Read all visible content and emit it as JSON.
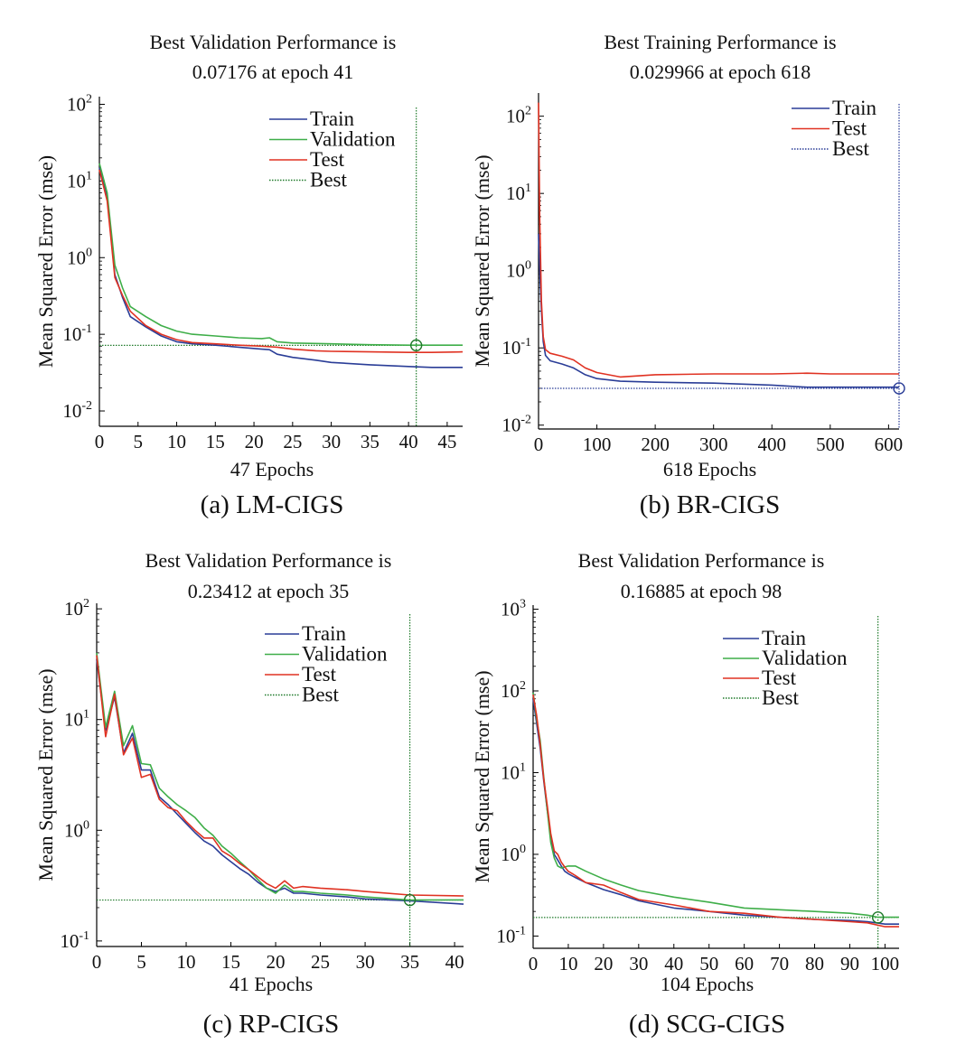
{
  "colors": {
    "train": "#2a3d97",
    "validation": "#3fae49",
    "test": "#e03222",
    "best_green": "#1f7a2a",
    "best_blue": "#2a3d97",
    "axis": "#000000"
  },
  "chart_data": [
    {
      "type": "line",
      "scale": "log",
      "caption": "(a) LM-CIGS",
      "title_line1": "Best Validation Performance is",
      "title_line2": "0.07176 at epoch 41",
      "xlabel": "47 Epochs",
      "ylabel": "Mean Squared Error (mse)",
      "xlim": [
        0,
        47
      ],
      "ylim_exp": [
        -2.2,
        2.1
      ],
      "xticks": [
        0,
        5,
        10,
        15,
        20,
        25,
        30,
        35,
        40,
        45
      ],
      "ytick_exps": [
        -2,
        -1,
        0,
        1,
        2
      ],
      "legend": [
        "Train",
        "Validation",
        "Test",
        "Best"
      ],
      "best": {
        "epoch": 41,
        "value": 0.07176,
        "color_key": "best_green"
      },
      "series": [
        {
          "name": "Train",
          "color_key": "train",
          "x": [
            0,
            1,
            2,
            3,
            4,
            6,
            8,
            10,
            12,
            15,
            18,
            21,
            22,
            23,
            25,
            28,
            30,
            35,
            40,
            43,
            47
          ],
          "y": [
            15,
            6,
            0.6,
            0.3,
            0.17,
            0.125,
            0.095,
            0.08,
            0.075,
            0.072,
            0.068,
            0.064,
            0.063,
            0.055,
            0.05,
            0.046,
            0.043,
            0.04,
            0.038,
            0.037,
            0.037
          ]
        },
        {
          "name": "Validation",
          "color_key": "validation",
          "x": [
            0,
            1,
            2,
            3,
            4,
            6,
            8,
            10,
            12,
            15,
            18,
            21,
            22,
            23,
            25,
            30,
            35,
            40,
            43,
            47
          ],
          "y": [
            17,
            7,
            0.8,
            0.4,
            0.23,
            0.17,
            0.13,
            0.11,
            0.1,
            0.095,
            0.09,
            0.088,
            0.09,
            0.08,
            0.077,
            0.075,
            0.073,
            0.072,
            0.072,
            0.072
          ]
        },
        {
          "name": "Test",
          "color_key": "test",
          "x": [
            0,
            1,
            2,
            3,
            4,
            6,
            8,
            10,
            12,
            15,
            18,
            21,
            23,
            25,
            28,
            30,
            35,
            40,
            43,
            47
          ],
          "y": [
            14,
            5.5,
            0.55,
            0.32,
            0.2,
            0.13,
            0.1,
            0.085,
            0.078,
            0.075,
            0.072,
            0.07,
            0.068,
            0.064,
            0.061,
            0.06,
            0.059,
            0.058,
            0.058,
            0.059
          ]
        }
      ]
    },
    {
      "type": "line",
      "scale": "log",
      "caption": "(b) BR-CIGS",
      "title_line1": "Best Training Performance is",
      "title_line2": "0.029966 at epoch 618",
      "xlabel": "618 Epochs",
      "ylabel": "Mean Squared Error (mse)",
      "xlim": [
        0,
        618
      ],
      "ylim_exp": [
        -2.05,
        2.3
      ],
      "xticks": [
        0,
        100,
        200,
        300,
        400,
        500,
        600
      ],
      "ytick_exps": [
        -2,
        -1,
        0,
        1,
        2
      ],
      "legend": [
        "Train",
        "Test",
        "Best"
      ],
      "best": {
        "epoch": 618,
        "value": 0.029966,
        "color_key": "best_blue"
      },
      "series": [
        {
          "name": "Train",
          "color_key": "train",
          "x": [
            0,
            2,
            5,
            8,
            12,
            20,
            40,
            60,
            80,
            100,
            140,
            200,
            300,
            400,
            460,
            500,
            618
          ],
          "y": [
            3,
            1,
            0.3,
            0.12,
            0.08,
            0.068,
            0.062,
            0.055,
            0.045,
            0.04,
            0.037,
            0.036,
            0.035,
            0.033,
            0.031,
            0.031,
            0.031
          ]
        },
        {
          "name": "Test",
          "color_key": "test",
          "x": [
            0,
            2,
            5,
            8,
            12,
            20,
            40,
            60,
            80,
            100,
            140,
            200,
            300,
            400,
            460,
            500,
            618
          ],
          "y": [
            150,
            5,
            0.4,
            0.14,
            0.095,
            0.085,
            0.078,
            0.07,
            0.055,
            0.048,
            0.042,
            0.045,
            0.046,
            0.046,
            0.047,
            0.046,
            0.046
          ]
        }
      ]
    },
    {
      "type": "line",
      "scale": "log",
      "caption": "(c) RP-CIGS",
      "title_line1": "Best Validation Performance is",
      "title_line2": "0.23412 at epoch 35",
      "xlabel": "41 Epochs",
      "ylabel": "Mean Squared Error (mse)",
      "xlim": [
        0,
        41
      ],
      "ylim_exp": [
        -1.05,
        2.05
      ],
      "xticks": [
        0,
        5,
        10,
        15,
        20,
        25,
        30,
        35,
        40
      ],
      "ytick_exps": [
        -1,
        0,
        1,
        2
      ],
      "legend": [
        "Train",
        "Validation",
        "Test",
        "Best"
      ],
      "best": {
        "epoch": 35,
        "value": 0.23412,
        "color_key": "best_green"
      },
      "series": [
        {
          "name": "Train",
          "color_key": "train",
          "x": [
            0,
            1,
            2,
            3,
            4,
            5,
            6,
            7,
            8,
            9,
            10,
            11,
            12,
            13,
            14,
            15,
            16,
            17,
            18,
            19,
            20,
            21,
            22,
            23,
            25,
            28,
            30,
            35,
            41
          ],
          "y": [
            35,
            8,
            16,
            5,
            7.5,
            3.5,
            3.5,
            2,
            1.7,
            1.4,
            1.15,
            0.95,
            0.8,
            0.72,
            0.6,
            0.52,
            0.45,
            0.4,
            0.34,
            0.3,
            0.28,
            0.3,
            0.27,
            0.27,
            0.26,
            0.25,
            0.24,
            0.23,
            0.215
          ]
        },
        {
          "name": "Validation",
          "color_key": "validation",
          "x": [
            0,
            1,
            2,
            3,
            4,
            5,
            6,
            7,
            8,
            9,
            10,
            11,
            12,
            13,
            14,
            15,
            16,
            17,
            18,
            19,
            20,
            21,
            22,
            23,
            25,
            28,
            30,
            35,
            41
          ],
          "y": [
            40,
            8.5,
            18,
            5.8,
            8.8,
            4,
            3.9,
            2.4,
            2,
            1.7,
            1.5,
            1.3,
            1.05,
            0.9,
            0.72,
            0.62,
            0.52,
            0.44,
            0.36,
            0.3,
            0.27,
            0.32,
            0.28,
            0.28,
            0.27,
            0.26,
            0.25,
            0.234,
            0.235
          ]
        },
        {
          "name": "Test",
          "color_key": "test",
          "x": [
            0,
            1,
            2,
            3,
            4,
            5,
            6,
            7,
            8,
            9,
            10,
            11,
            12,
            13,
            14,
            15,
            16,
            17,
            18,
            19,
            20,
            21,
            22,
            23,
            25,
            28,
            30,
            35,
            41
          ],
          "y": [
            38,
            7,
            17,
            4.8,
            6.8,
            3,
            3.2,
            1.9,
            1.6,
            1.5,
            1.2,
            1,
            0.85,
            0.85,
            0.65,
            0.58,
            0.5,
            0.44,
            0.38,
            0.33,
            0.3,
            0.35,
            0.3,
            0.31,
            0.3,
            0.29,
            0.28,
            0.26,
            0.255
          ]
        }
      ]
    },
    {
      "type": "line",
      "scale": "log",
      "caption": "(d) SCG-CIGS",
      "title_line1": "Best Validation Performance is",
      "title_line2": "0.16885 at epoch 98",
      "xlabel": "104 Epochs",
      "ylabel": "Mean Squared Error (mse)",
      "xlim": [
        0,
        104
      ],
      "ylim_exp": [
        -1.15,
        3.05
      ],
      "xticks": [
        0,
        10,
        20,
        30,
        40,
        50,
        60,
        70,
        80,
        90,
        100
      ],
      "ytick_exps": [
        -1,
        0,
        1,
        2,
        3
      ],
      "legend": [
        "Train",
        "Validation",
        "Test",
        "Best"
      ],
      "best": {
        "epoch": 98,
        "value": 0.16885,
        "color_key": "best_green"
      },
      "series": [
        {
          "name": "Train",
          "color_key": "train",
          "x": [
            0,
            1,
            2,
            3,
            4,
            5,
            6,
            7,
            8,
            9,
            10,
            12,
            15,
            20,
            25,
            30,
            40,
            50,
            60,
            70,
            80,
            90,
            95,
            100,
            104
          ],
          "y": [
            80,
            40,
            20,
            8,
            3.5,
            1.7,
            1,
            0.85,
            0.72,
            0.62,
            0.58,
            0.52,
            0.45,
            0.37,
            0.32,
            0.27,
            0.22,
            0.2,
            0.18,
            0.17,
            0.16,
            0.155,
            0.15,
            0.14,
            0.14
          ]
        },
        {
          "name": "Validation",
          "color_key": "validation",
          "x": [
            0,
            1,
            2,
            3,
            4,
            5,
            6,
            7,
            8,
            9,
            10,
            12,
            15,
            20,
            25,
            30,
            40,
            50,
            60,
            70,
            80,
            90,
            95,
            98,
            100,
            104
          ],
          "y": [
            95,
            45,
            25,
            9,
            3.5,
            1.4,
            0.9,
            0.72,
            0.68,
            0.7,
            0.72,
            0.72,
            0.62,
            0.5,
            0.42,
            0.36,
            0.3,
            0.26,
            0.22,
            0.21,
            0.2,
            0.19,
            0.18,
            0.17,
            0.17,
            0.17
          ]
        },
        {
          "name": "Test",
          "color_key": "test",
          "x": [
            0,
            1,
            2,
            3,
            4,
            5,
            6,
            7,
            8,
            9,
            10,
            12,
            15,
            20,
            25,
            30,
            40,
            50,
            60,
            70,
            80,
            90,
            95,
            100,
            104
          ],
          "y": [
            90,
            50,
            22,
            8.5,
            4,
            1.8,
            1.1,
            1,
            0.8,
            0.7,
            0.62,
            0.55,
            0.45,
            0.42,
            0.34,
            0.28,
            0.24,
            0.2,
            0.19,
            0.17,
            0.16,
            0.15,
            0.145,
            0.13,
            0.13
          ]
        }
      ]
    }
  ]
}
